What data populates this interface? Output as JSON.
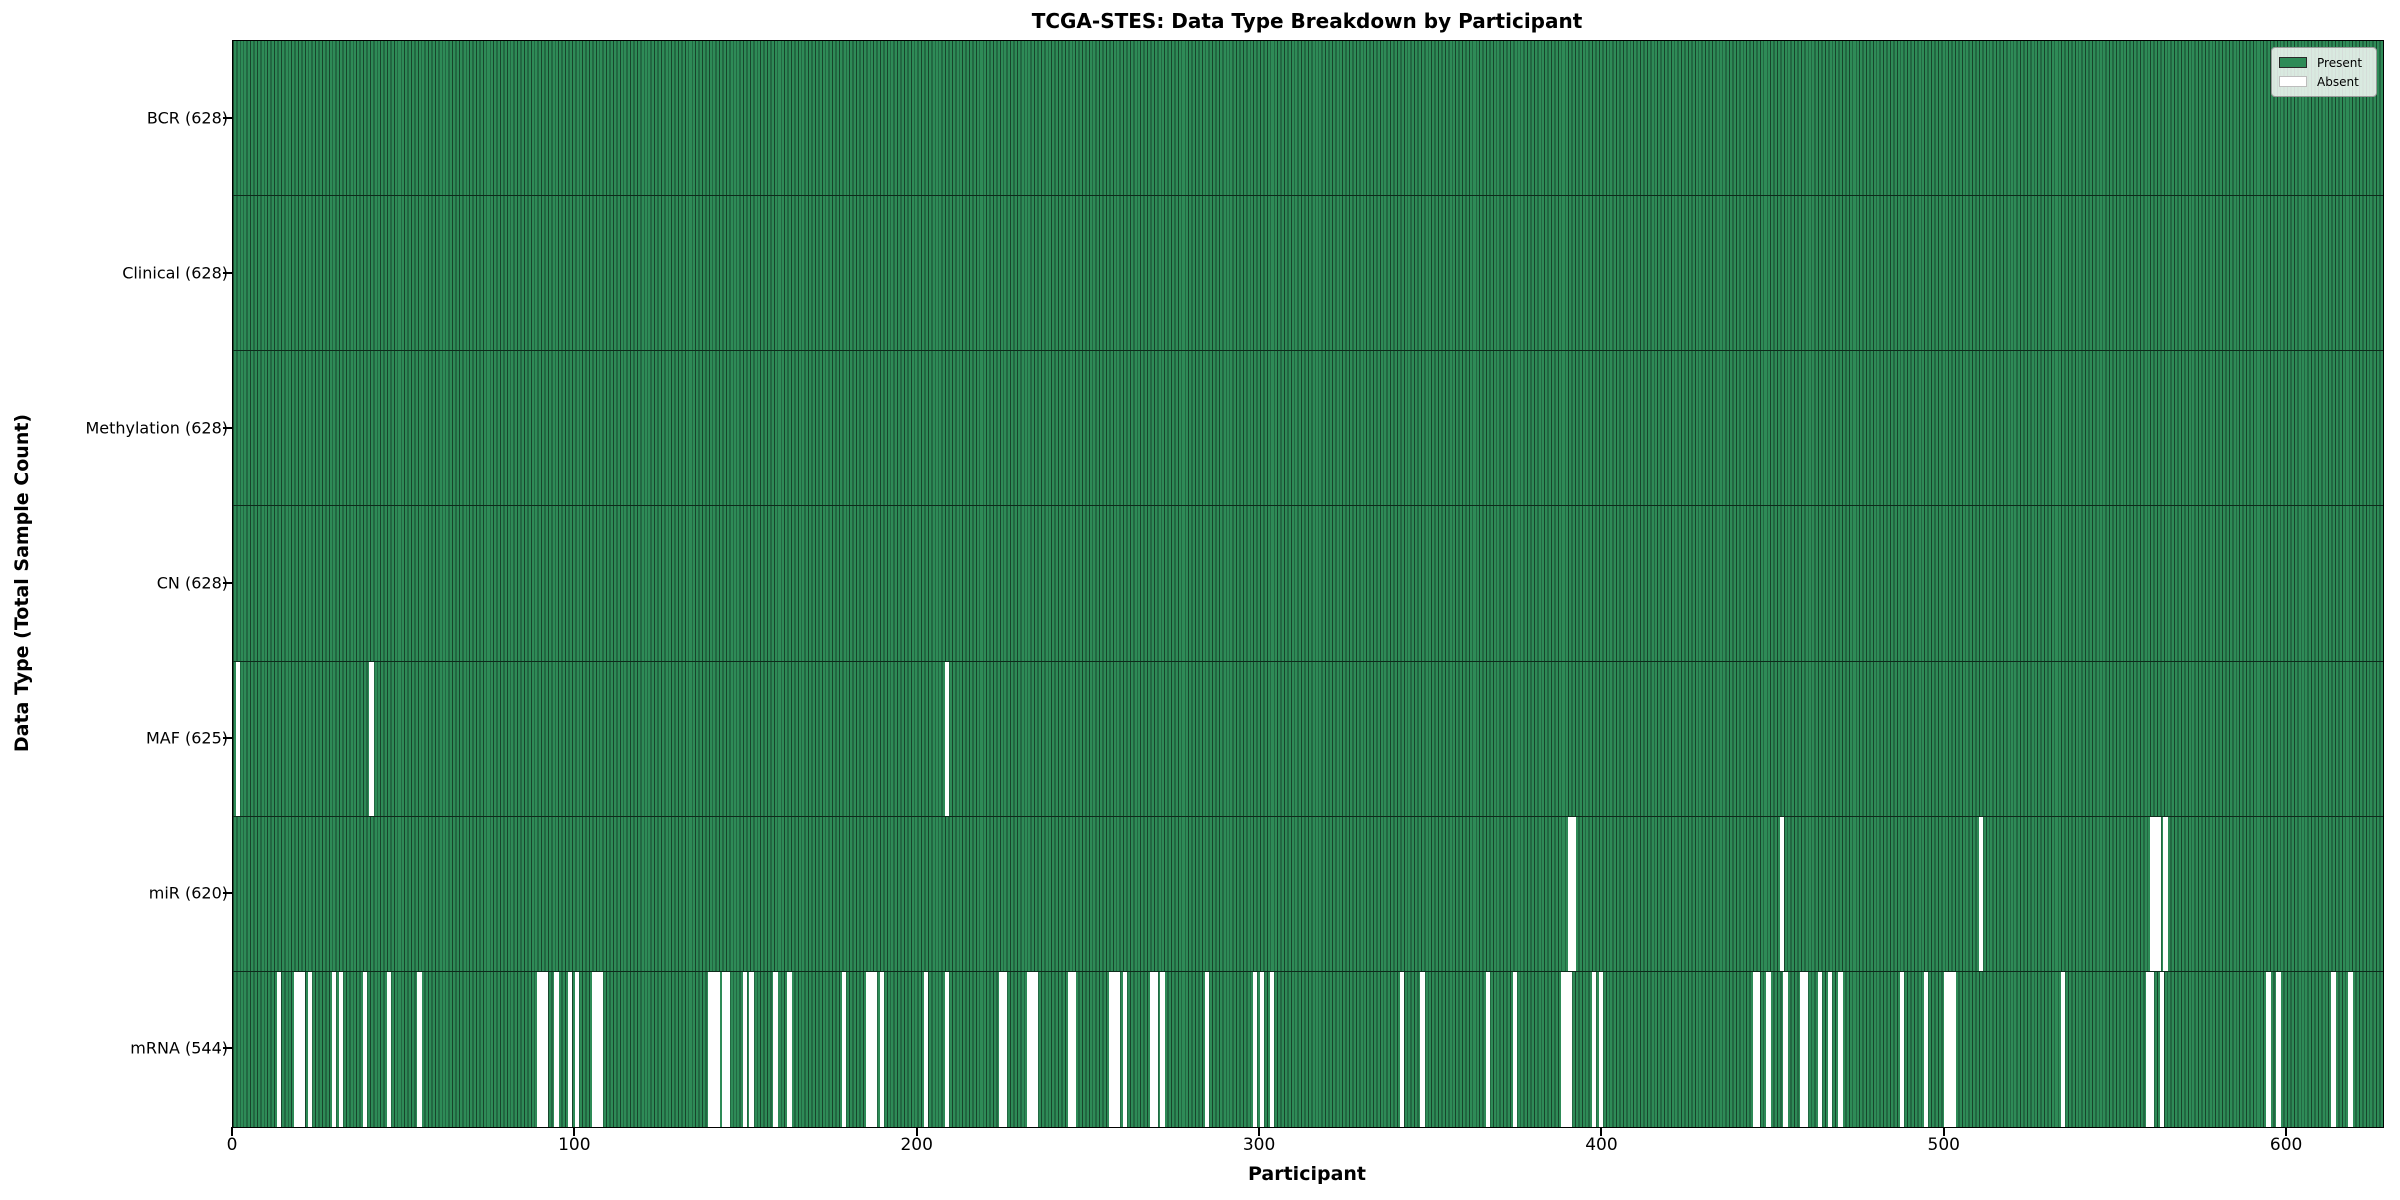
{
  "chart_data": {
    "type": "heatmap",
    "title": "TCGA-STES: Data Type Breakdown by Participant",
    "xlabel": "Participant",
    "ylabel": "Data Type (Total Sample Count)",
    "x_ticks": [
      0,
      100,
      200,
      300,
      400,
      500,
      600
    ],
    "xlim": [
      0,
      628
    ],
    "n_participants": 628,
    "grid": false,
    "legend": {
      "position": "upper right",
      "entries": [
        {
          "label": "Present",
          "color": "#2e8b57"
        },
        {
          "label": "Absent",
          "color": "#ffffff"
        }
      ]
    },
    "colors": {
      "present": "#2e8b57",
      "bar_edge": "#17452c",
      "absent": "#ffffff",
      "row_separator": "#0d2b1b"
    },
    "rows": [
      {
        "name": "BCR",
        "count": 628,
        "label": "BCR (628)",
        "absent_participants": []
      },
      {
        "name": "Clinical",
        "count": 628,
        "label": "Clinical (628)",
        "absent_participants": []
      },
      {
        "name": "Methylation",
        "count": 628,
        "label": "Methylation (628)",
        "absent_participants": []
      },
      {
        "name": "CN",
        "count": 628,
        "label": "CN (628)",
        "absent_participants": []
      },
      {
        "name": "MAF",
        "count": 625,
        "label": "MAF (625)",
        "absent_participants": [
          1,
          40,
          208
        ]
      },
      {
        "name": "miR",
        "count": 620,
        "label": "miR (620)",
        "absent_participants": [
          390,
          391,
          452,
          510,
          560,
          561,
          562,
          564
        ]
      },
      {
        "name": "mRNA",
        "count": 544,
        "label": "mRNA (544)",
        "absent_participants": [
          13,
          18,
          19,
          20,
          22,
          29,
          31,
          38,
          45,
          54,
          89,
          90,
          91,
          94,
          98,
          100,
          105,
          106,
          107,
          139,
          140,
          141,
          143,
          144,
          149,
          151,
          158,
          162,
          178,
          185,
          186,
          187,
          189,
          202,
          208,
          224,
          225,
          232,
          233,
          234,
          244,
          245,
          256,
          257,
          258,
          260,
          268,
          269,
          271,
          284,
          298,
          300,
          303,
          341,
          347,
          366,
          374,
          388,
          389,
          390,
          397,
          399,
          444,
          445,
          448,
          453,
          458,
          459,
          463,
          466,
          469,
          487,
          494,
          500,
          501,
          502,
          534,
          559,
          560,
          563,
          594,
          597,
          613,
          618
        ]
      }
    ]
  }
}
